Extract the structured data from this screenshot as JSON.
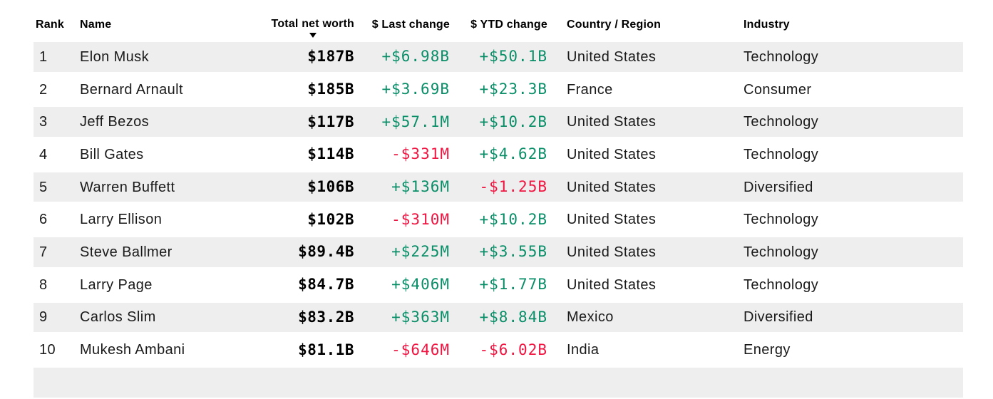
{
  "table": {
    "columns": [
      {
        "label": "Rank"
      },
      {
        "label": "Name"
      },
      {
        "label": "Total net worth",
        "sorted": true,
        "sort_direction": "desc"
      },
      {
        "label": "$ Last change"
      },
      {
        "label": "$ YTD change"
      },
      {
        "label": "Country / Region"
      },
      {
        "label": "Industry"
      }
    ],
    "rows": [
      {
        "rank": "1",
        "name": "Elon Musk",
        "net_worth": "$187B",
        "last_change": "+$6.98B",
        "last_change_dir": "up",
        "ytd_change": "+$50.1B",
        "ytd_change_dir": "up",
        "country": "United States",
        "industry": "Technology"
      },
      {
        "rank": "2",
        "name": "Bernard Arnault",
        "net_worth": "$185B",
        "last_change": "+$3.69B",
        "last_change_dir": "up",
        "ytd_change": "+$23.3B",
        "ytd_change_dir": "up",
        "country": "France",
        "industry": "Consumer"
      },
      {
        "rank": "3",
        "name": "Jeff Bezos",
        "net_worth": "$117B",
        "last_change": "+$57.1M",
        "last_change_dir": "up",
        "ytd_change": "+$10.2B",
        "ytd_change_dir": "up",
        "country": "United States",
        "industry": "Technology"
      },
      {
        "rank": "4",
        "name": "Bill Gates",
        "net_worth": "$114B",
        "last_change": "-$331M",
        "last_change_dir": "down",
        "ytd_change": "+$4.62B",
        "ytd_change_dir": "up",
        "country": "United States",
        "industry": "Technology"
      },
      {
        "rank": "5",
        "name": "Warren Buffett",
        "net_worth": "$106B",
        "last_change": "+$136M",
        "last_change_dir": "up",
        "ytd_change": "-$1.25B",
        "ytd_change_dir": "down",
        "country": "United States",
        "industry": "Diversified"
      },
      {
        "rank": "6",
        "name": "Larry Ellison",
        "net_worth": "$102B",
        "last_change": "-$310M",
        "last_change_dir": "down",
        "ytd_change": "+$10.2B",
        "ytd_change_dir": "up",
        "country": "United States",
        "industry": "Technology"
      },
      {
        "rank": "7",
        "name": "Steve Ballmer",
        "net_worth": "$89.4B",
        "last_change": "+$225M",
        "last_change_dir": "up",
        "ytd_change": "+$3.55B",
        "ytd_change_dir": "up",
        "country": "United States",
        "industry": "Technology"
      },
      {
        "rank": "8",
        "name": "Larry Page",
        "net_worth": "$84.7B",
        "last_change": "+$406M",
        "last_change_dir": "up",
        "ytd_change": "+$1.77B",
        "ytd_change_dir": "up",
        "country": "United States",
        "industry": "Technology"
      },
      {
        "rank": "9",
        "name": "Carlos Slim",
        "net_worth": "$83.2B",
        "last_change": "+$363M",
        "last_change_dir": "up",
        "ytd_change": "+$8.84B",
        "ytd_change_dir": "up",
        "country": "Mexico",
        "industry": "Diversified"
      },
      {
        "rank": "10",
        "name": "Mukesh Ambani",
        "net_worth": "$81.1B",
        "last_change": "-$646M",
        "last_change_dir": "down",
        "ytd_change": "-$6.02B",
        "ytd_change_dir": "down",
        "country": "India",
        "industry": "Energy"
      }
    ]
  },
  "icons": {
    "sort_descending": "triangle-down"
  },
  "colors": {
    "positive_green": "#0a8e68",
    "negative_red": "#f01440",
    "row_stripe": "#eeeeee",
    "header_text": "#000000",
    "body_text": "#1a1a1a"
  }
}
